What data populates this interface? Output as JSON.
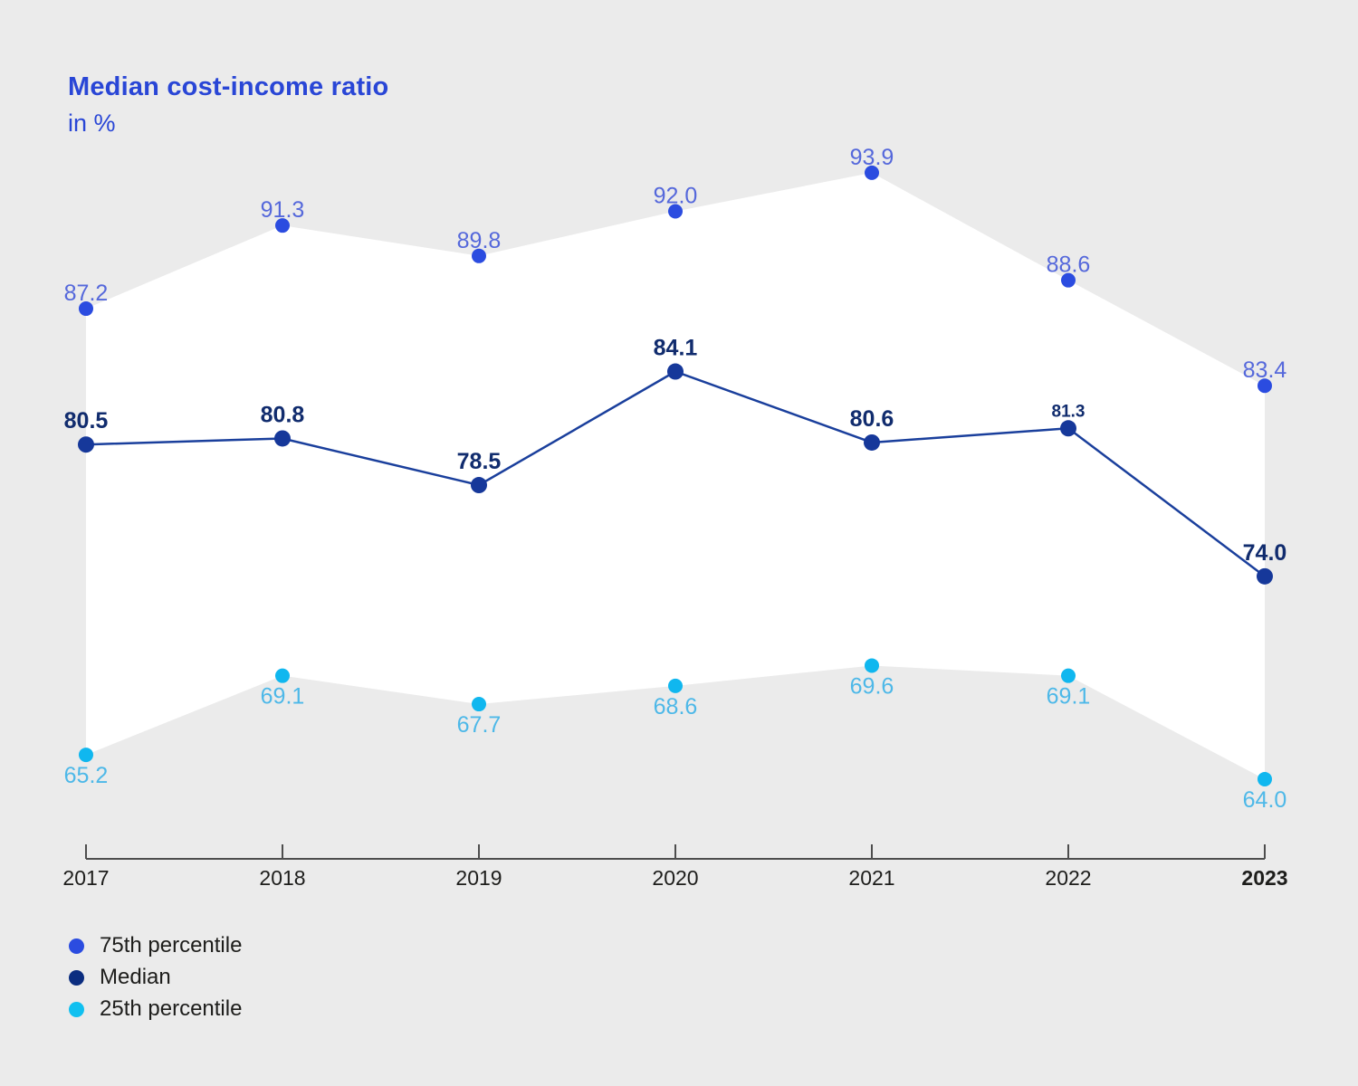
{
  "page": {
    "background_color": "#ebebeb",
    "band_fill_color": "#ffffff"
  },
  "header": {
    "title": "Median cost-income ratio",
    "subtitle": "in %",
    "title_color": "#2946d6"
  },
  "chart_data": {
    "type": "line",
    "title": "Median cost-income ratio",
    "subtitle": "in %",
    "categories": [
      "2017",
      "2018",
      "2019",
      "2020",
      "2021",
      "2022",
      "2023"
    ],
    "bold_last_category": true,
    "ylim": [
      60,
      94
    ],
    "grid": false,
    "legend_position": "bottom-left",
    "axis_color": "#4d4d4d",
    "category_label_color": "#1d1d1b",
    "band": {
      "between": [
        "75th percentile",
        "25th percentile"
      ],
      "fill": "#ffffff"
    },
    "series": [
      {
        "name": "75th percentile",
        "values": [
          87.2,
          91.3,
          89.8,
          92.0,
          93.9,
          88.6,
          83.4
        ],
        "labels": [
          "87.2",
          "91.3",
          "89.8",
          "92.0",
          "93.9",
          "88.6",
          "83.4"
        ],
        "dot_color": "#2b4ce0",
        "label_color": "#5568db",
        "label_position": "above",
        "bold_labels": false,
        "draw_line": false,
        "small_label_indexes": []
      },
      {
        "name": "Median",
        "values": [
          80.5,
          80.8,
          78.5,
          84.1,
          80.6,
          81.3,
          74.0
        ],
        "labels": [
          "80.5",
          "80.8",
          "78.5",
          "84.1",
          "80.6",
          "81.3",
          "74.0"
        ],
        "dot_color": "#16389a",
        "line_color": "#1a3f9c",
        "label_color": "#112c6e",
        "label_position": "above",
        "bold_labels": true,
        "draw_line": true,
        "small_label_indexes": [
          5
        ]
      },
      {
        "name": "25th percentile",
        "values": [
          65.2,
          69.1,
          67.7,
          68.6,
          69.6,
          69.1,
          64.0
        ],
        "labels": [
          "65.2",
          "69.1",
          "67.7",
          "68.6",
          "69.6",
          "69.1",
          "64.0"
        ],
        "dot_color": "#10b7ef",
        "label_color": "#4db8e8",
        "label_position": "below",
        "bold_labels": false,
        "draw_line": false,
        "small_label_indexes": []
      }
    ]
  },
  "legend": {
    "items": [
      {
        "label": "75th percentile",
        "color": "#2b4ce0"
      },
      {
        "label": "Median",
        "color": "#0b2d80"
      },
      {
        "label": "25th percentile",
        "color": "#10c0f0"
      }
    ]
  }
}
